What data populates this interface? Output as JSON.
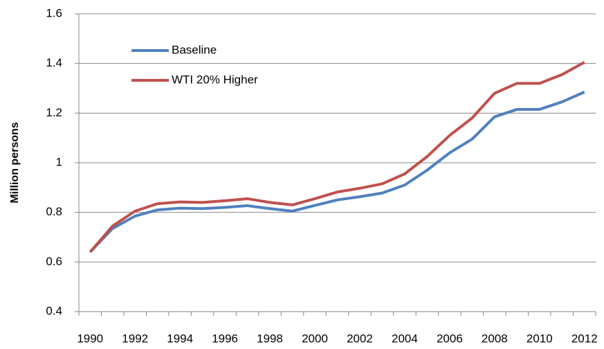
{
  "chart_data": {
    "type": "line",
    "y_label": "Million persons",
    "categories": [
      "1990",
      null,
      "1992",
      null,
      "1994",
      null,
      "1996",
      null,
      "1998",
      null,
      "2000",
      null,
      "2002",
      null,
      "2004",
      null,
      "2006",
      null,
      "2008",
      null,
      "2010",
      null,
      "2012"
    ],
    "series": [
      {
        "name": "Baseline",
        "color": "#4f81bd",
        "values": [
          0.64,
          0.735,
          0.785,
          0.81,
          0.817,
          0.815,
          0.82,
          0.827,
          0.815,
          0.805,
          0.828,
          0.85,
          0.863,
          0.878,
          0.91,
          0.97,
          1.04,
          1.095,
          1.185,
          1.215,
          1.215,
          1.245,
          1.285
        ]
      },
      {
        "name": "WTI 20% Higher",
        "color": "#c0504d",
        "values": [
          0.64,
          0.745,
          0.805,
          0.835,
          0.842,
          0.84,
          0.847,
          0.855,
          0.84,
          0.83,
          0.855,
          0.882,
          0.897,
          0.915,
          0.955,
          1.025,
          1.11,
          1.18,
          1.28,
          1.32,
          1.32,
          1.355,
          1.405
        ]
      }
    ],
    "ylim": [
      0.4,
      1.6
    ],
    "yticks": [
      0.4,
      0.6,
      0.8,
      1,
      1.2,
      1.4,
      1.6
    ],
    "grid": true,
    "legend": "upper-left"
  }
}
